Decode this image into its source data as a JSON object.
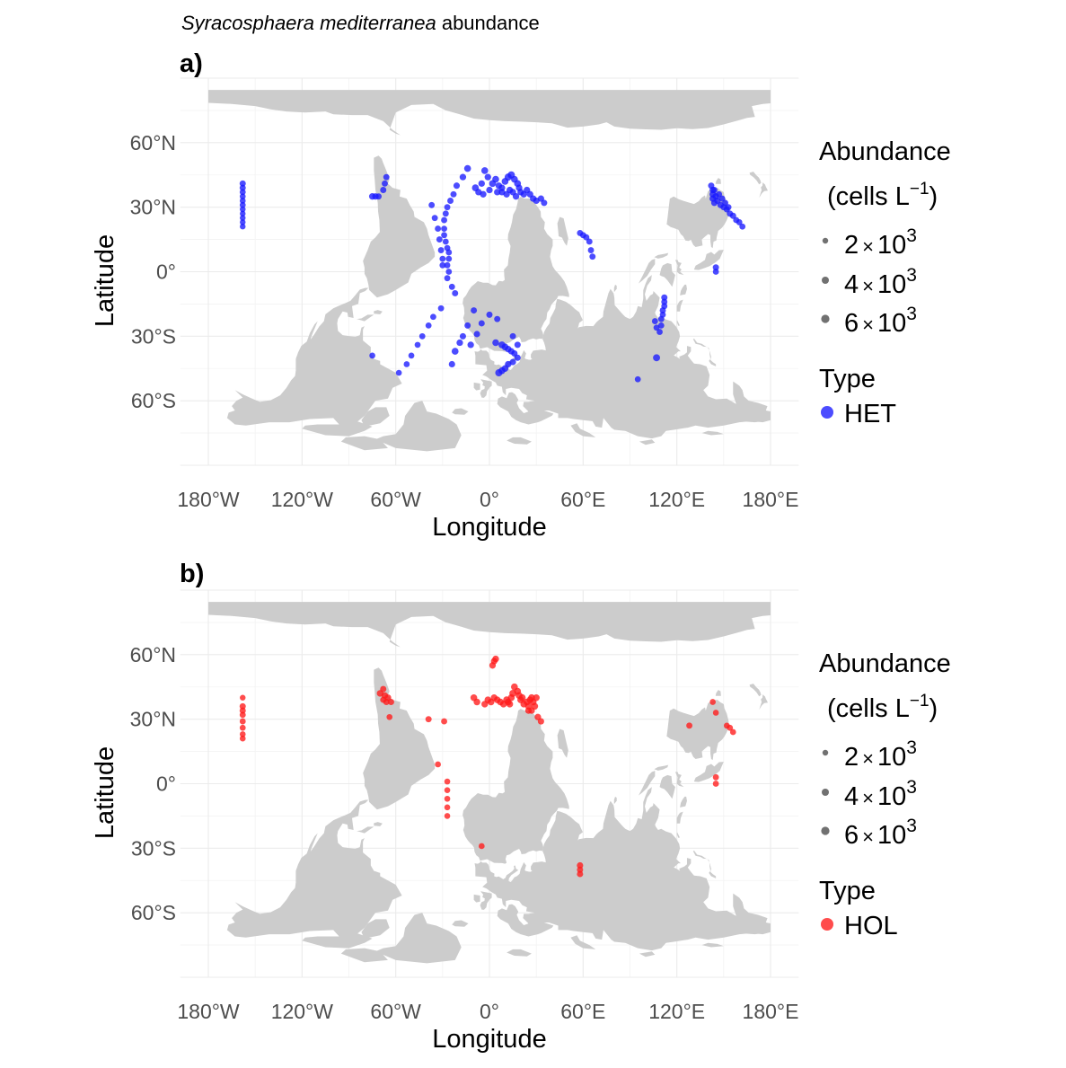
{
  "title": {
    "species": "Syracosphaera mediterranea",
    "rest": " abundance"
  },
  "colors": {
    "het": "#1a1aff",
    "hol": "#ff1a1a",
    "land": "#cccccc",
    "grid": "#ebebeb",
    "legend_size": "#4d4d4d"
  },
  "axes": {
    "xlabel": "Longitude",
    "ylabel": "Latitude",
    "x_ticks": [
      {
        "value": -180,
        "label": "180°W"
      },
      {
        "value": -120,
        "label": "120°W"
      },
      {
        "value": -60,
        "label": "60°W"
      },
      {
        "value": 0,
        "label": "0°"
      },
      {
        "value": 60,
        "label": "60°E"
      },
      {
        "value": 120,
        "label": "120°E"
      },
      {
        "value": 180,
        "label": "180°E"
      }
    ],
    "y_ticks": [
      {
        "value": 60,
        "label": "60°N"
      },
      {
        "value": 30,
        "label": "30°N"
      },
      {
        "value": 0,
        "label": "0°"
      },
      {
        "value": -30,
        "label": "30°S"
      },
      {
        "value": -60,
        "label": "60°S"
      }
    ],
    "xlim": [
      -198,
      198
    ],
    "ylim": [
      -90,
      90
    ]
  },
  "legend": {
    "size_title_line1": "Abundance",
    "size_title_line2_pre": "(cells L",
    "size_title_exp": "−1",
    "size_title_line2_post": ")",
    "size_entries": [
      {
        "mantissa": "2",
        "times": "×",
        "base": "10",
        "exponent": "3",
        "value": 2000
      },
      {
        "mantissa": "4",
        "times": "×",
        "base": "10",
        "exponent": "3",
        "value": 4000
      },
      {
        "mantissa": "6",
        "times": "×",
        "base": "10",
        "exponent": "3",
        "value": 6000
      }
    ],
    "type_title": "Type"
  },
  "chart_data": [
    {
      "panel": "a)",
      "type": "scatter",
      "series_name": "HET",
      "x_name": "Longitude",
      "y_name": "Latitude",
      "points": [
        [
          -158,
          41,
          2600
        ],
        [
          -158,
          39,
          2500
        ],
        [
          -158,
          37,
          2400
        ],
        [
          -158,
          35,
          2200
        ],
        [
          -158,
          33,
          2200
        ],
        [
          -158,
          31,
          2300
        ],
        [
          -158,
          29,
          2100
        ],
        [
          -158,
          27,
          2000
        ],
        [
          -158,
          25,
          2000
        ],
        [
          -158,
          23,
          2000
        ],
        [
          -158,
          21,
          2000
        ],
        [
          -66,
          44,
          2500
        ],
        [
          -67,
          41,
          2500
        ],
        [
          -68,
          38,
          2600
        ],
        [
          -73,
          35,
          2800
        ],
        [
          -75,
          35,
          3000
        ],
        [
          -71,
          35,
          2500
        ],
        [
          -14,
          48,
          3500
        ],
        [
          -17,
          44,
          3000
        ],
        [
          -21,
          40,
          2800
        ],
        [
          -23,
          36,
          2600
        ],
        [
          -25,
          33,
          2600
        ],
        [
          -27,
          30,
          2500
        ],
        [
          -28,
          27,
          2500
        ],
        [
          -29,
          24,
          2500
        ],
        [
          -29,
          20,
          2400
        ],
        [
          -29,
          17,
          2400
        ],
        [
          -28,
          14,
          2400
        ],
        [
          -27,
          11,
          2400
        ],
        [
          -26,
          9,
          2400
        ],
        [
          -26,
          6,
          2400
        ],
        [
          -27,
          3,
          2400
        ],
        [
          -26,
          0,
          2400
        ],
        [
          -27,
          -3,
          2400
        ],
        [
          -24,
          -7,
          2500
        ],
        [
          -22,
          -10,
          2600
        ],
        [
          -37,
          31,
          2500
        ],
        [
          -35,
          25,
          2500
        ],
        [
          -33,
          20,
          2500
        ],
        [
          -32,
          15,
          2500
        ],
        [
          -31,
          10,
          2500
        ],
        [
          -30,
          6,
          2500
        ],
        [
          -30,
          3,
          2500
        ],
        [
          -3,
          47,
          3500
        ],
        [
          -1,
          44,
          3000
        ],
        [
          -5,
          41,
          3000
        ],
        [
          -9,
          39,
          3500
        ],
        [
          -7,
          37,
          3000
        ],
        [
          -4,
          36,
          3000
        ],
        [
          0,
          38,
          3000
        ],
        [
          2,
          41,
          3500
        ],
        [
          4,
          43,
          3500
        ],
        [
          6,
          40,
          3000
        ],
        [
          8,
          39,
          3000
        ],
        [
          10,
          42,
          3500
        ],
        [
          12,
          44,
          4000
        ],
        [
          14,
          45,
          4000
        ],
        [
          16,
          43,
          3500
        ],
        [
          18,
          41,
          3500
        ],
        [
          19,
          39,
          3000
        ],
        [
          20,
          37,
          3000
        ],
        [
          22,
          36,
          3000
        ],
        [
          24,
          38,
          3000
        ],
        [
          26,
          36,
          3000
        ],
        [
          28,
          34,
          3000
        ],
        [
          30,
          33,
          2800
        ],
        [
          33,
          34,
          2800
        ],
        [
          35,
          32,
          2700
        ],
        [
          13,
          38,
          3000
        ],
        [
          15,
          37,
          3000
        ],
        [
          17,
          35,
          3000
        ],
        [
          11,
          36,
          3000
        ],
        [
          8,
          37,
          3000
        ],
        [
          5,
          37,
          3000
        ],
        [
          -10,
          -18,
          2600
        ],
        [
          -14,
          -25,
          2600
        ],
        [
          -17,
          -30,
          2700
        ],
        [
          -19,
          -33,
          3000
        ],
        [
          -22,
          -37,
          3500
        ],
        [
          -24,
          -43,
          2800
        ],
        [
          -12,
          -34,
          3000
        ],
        [
          -8,
          -29,
          2700
        ],
        [
          -5,
          -24,
          2600
        ],
        [
          0,
          -20,
          2600
        ],
        [
          5,
          -22,
          2600
        ],
        [
          4,
          -33,
          3300
        ],
        [
          8,
          -34,
          3500
        ],
        [
          10,
          -35,
          3300
        ],
        [
          12,
          -36,
          3000
        ],
        [
          14,
          -37,
          2800
        ],
        [
          16,
          -38,
          2700
        ],
        [
          18,
          -40,
          2700
        ],
        [
          15,
          -42,
          2700
        ],
        [
          12,
          -43,
          3000
        ],
        [
          10,
          -45,
          3200
        ],
        [
          8,
          -46,
          3500
        ],
        [
          6,
          -47,
          4000
        ],
        [
          15,
          -30,
          2600
        ],
        [
          18,
          -34,
          2700
        ],
        [
          -31,
          -17,
          2400
        ],
        [
          -36,
          -21,
          2400
        ],
        [
          -39,
          -25,
          2400
        ],
        [
          -43,
          -30,
          2400
        ],
        [
          -46,
          -34,
          2300
        ],
        [
          -50,
          -39,
          2300
        ],
        [
          -53,
          -43,
          2300
        ],
        [
          -58,
          -47,
          2200
        ],
        [
          -75,
          -39,
          2300
        ],
        [
          58,
          18,
          2500
        ],
        [
          60,
          17,
          2500
        ],
        [
          62,
          16,
          2500
        ],
        [
          64,
          14,
          2500
        ],
        [
          65,
          10,
          2500
        ],
        [
          66,
          7,
          2500
        ],
        [
          143,
          38,
          3000
        ],
        [
          143,
          36,
          3000
        ],
        [
          143,
          34,
          3000
        ],
        [
          144,
          32,
          2800
        ],
        [
          145,
          35,
          3000
        ],
        [
          146,
          33,
          2800
        ],
        [
          148,
          31,
          2800
        ],
        [
          150,
          30,
          2600
        ],
        [
          152,
          29,
          2600
        ],
        [
          154,
          27,
          2600
        ],
        [
          156,
          26,
          2600
        ],
        [
          158,
          24,
          2400
        ],
        [
          160,
          23,
          2400
        ],
        [
          162,
          21,
          2400
        ],
        [
          142,
          40,
          2600
        ],
        [
          144,
          38,
          2700
        ],
        [
          147,
          36,
          2500
        ],
        [
          149,
          34,
          2600
        ],
        [
          151,
          32,
          2500
        ],
        [
          153,
          30,
          2600
        ],
        [
          145,
          2,
          2600
        ],
        [
          145,
          0,
          2400
        ],
        [
          112,
          -12,
          2600
        ],
        [
          112,
          -14,
          2600
        ],
        [
          112,
          -16,
          2500
        ],
        [
          111,
          -18,
          2500
        ],
        [
          111,
          -20,
          2400
        ],
        [
          110,
          -22,
          2400
        ],
        [
          110,
          -25,
          2400
        ],
        [
          109,
          -28,
          2400
        ],
        [
          106,
          -23,
          2400
        ],
        [
          107,
          -26,
          2400
        ],
        [
          107,
          -40,
          3800
        ],
        [
          95,
          -50,
          2300
        ]
      ]
    },
    {
      "panel": "b)",
      "type": "scatter",
      "series_name": "HOL",
      "x_name": "Longitude",
      "y_name": "Latitude",
      "points": [
        [
          -158,
          40,
          2000
        ],
        [
          -158,
          36,
          2600
        ],
        [
          -158,
          34,
          2600
        ],
        [
          -158,
          32,
          2500
        ],
        [
          -158,
          29,
          2400
        ],
        [
          -158,
          26,
          2300
        ],
        [
          -158,
          23,
          2200
        ],
        [
          -158,
          21,
          2200
        ],
        [
          -68,
          44,
          2600
        ],
        [
          -70,
          42,
          3200
        ],
        [
          -67,
          41,
          3000
        ],
        [
          -65,
          40,
          3000
        ],
        [
          -66,
          38,
          2600
        ],
        [
          -63,
          38,
          2600
        ],
        [
          -68,
          39,
          2500
        ],
        [
          -64,
          31,
          2200
        ],
        [
          -39,
          30,
          2600
        ],
        [
          -29,
          29,
          2500
        ],
        [
          -33,
          9,
          2300
        ],
        [
          -27,
          1,
          2200
        ],
        [
          -27,
          -3,
          2200
        ],
        [
          -27,
          -7,
          2200
        ],
        [
          -27,
          -11,
          2200
        ],
        [
          -27,
          -15,
          2200
        ],
        [
          -5,
          -29,
          2300
        ],
        [
          2,
          55,
          3000
        ],
        [
          3,
          57,
          3000
        ],
        [
          4,
          58,
          3200
        ],
        [
          -10,
          40,
          3300
        ],
        [
          -8,
          38,
          3200
        ],
        [
          -3,
          37,
          3200
        ],
        [
          -1,
          39,
          3300
        ],
        [
          1,
          38,
          3300
        ],
        [
          3,
          40,
          3200
        ],
        [
          5,
          39,
          3300
        ],
        [
          7,
          38,
          3300
        ],
        [
          9,
          37,
          3300
        ],
        [
          11,
          39,
          3500
        ],
        [
          12,
          38,
          3300
        ],
        [
          13,
          37,
          3300
        ],
        [
          14,
          40,
          3500
        ],
        [
          15,
          42,
          3800
        ],
        [
          16,
          45,
          3500
        ],
        [
          18,
          43,
          3500
        ],
        [
          19,
          41,
          3500
        ],
        [
          20,
          39,
          3300
        ],
        [
          21,
          40,
          3500
        ],
        [
          22,
          37,
          3300
        ],
        [
          24,
          38,
          3300
        ],
        [
          25,
          36,
          3300
        ],
        [
          26,
          39,
          3300
        ],
        [
          27,
          40,
          3400
        ],
        [
          28,
          38,
          3300
        ],
        [
          29,
          36,
          3300
        ],
        [
          30,
          40,
          3300
        ],
        [
          25,
          34,
          3000
        ],
        [
          27,
          34,
          3000
        ],
        [
          31,
          31,
          3000
        ],
        [
          33,
          29,
          2800
        ],
        [
          58,
          -38,
          2800
        ],
        [
          58,
          -40,
          2600
        ],
        [
          58,
          -42,
          2600
        ],
        [
          128,
          27,
          2500
        ],
        [
          143,
          38,
          2300
        ],
        [
          145,
          33,
          2200
        ],
        [
          145,
          3,
          2400
        ],
        [
          145,
          0,
          2400
        ],
        [
          152,
          27,
          2300
        ],
        [
          154,
          26,
          2300
        ],
        [
          156,
          24,
          2300
        ]
      ]
    }
  ]
}
